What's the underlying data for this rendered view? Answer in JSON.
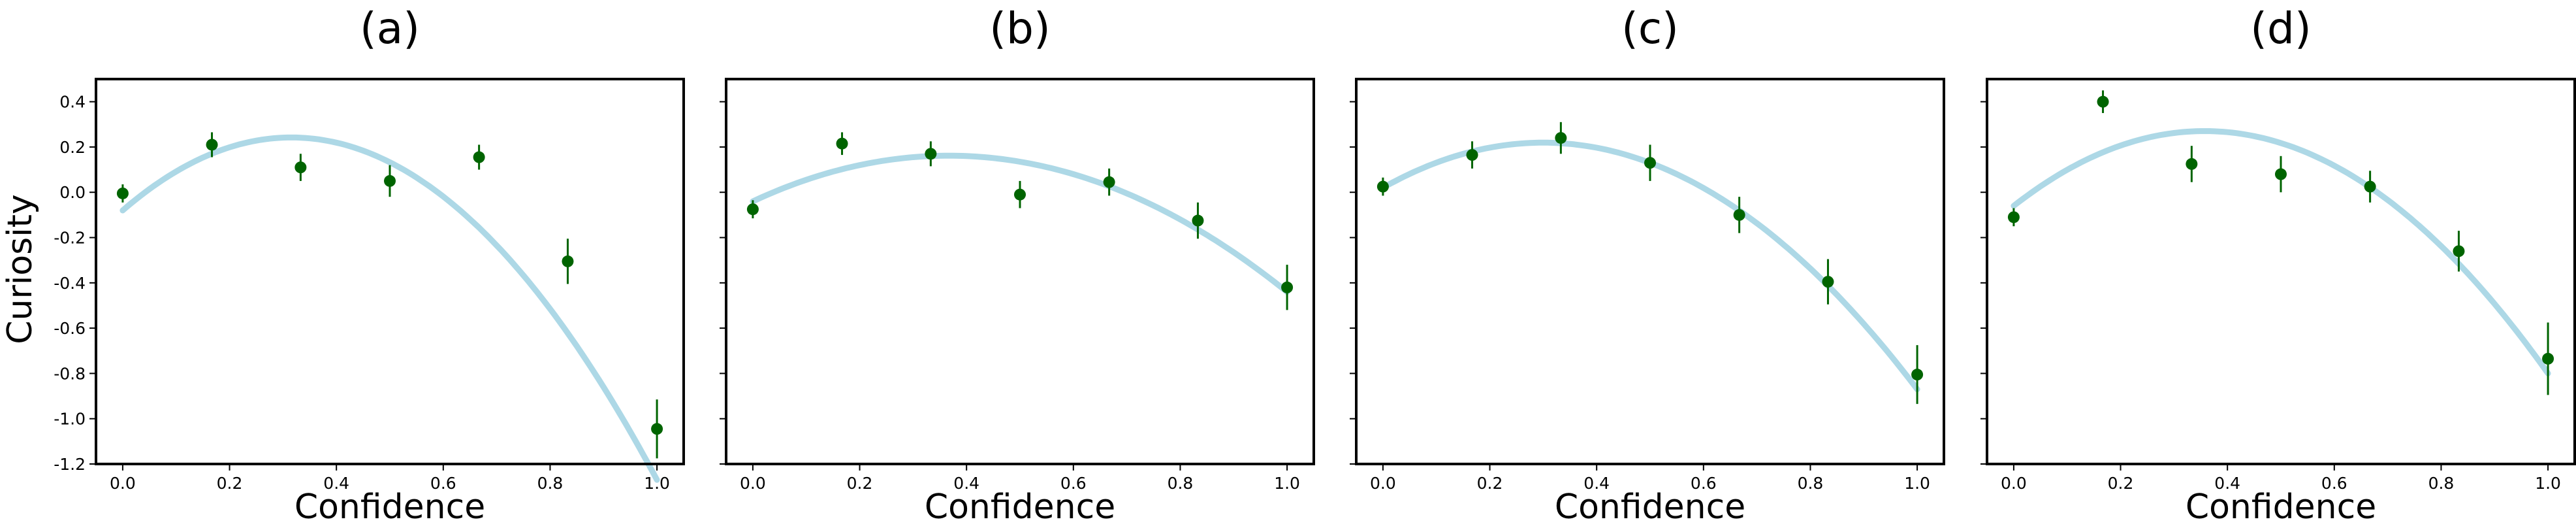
{
  "figure": {
    "ylabel": "Curiosity"
  },
  "colors": {
    "points": "#006400",
    "fit_curve": "#add8e6",
    "axes": "#000000"
  },
  "chart_data": [
    {
      "type": "scatter",
      "title": "(a)",
      "xlabel": "Confidence",
      "ylabel": "Curiosity",
      "xlim": [
        -0.05,
        1.05
      ],
      "ylim": [
        -1.2,
        0.5
      ],
      "xticks": [
        "0.0",
        "0.2",
        "0.4",
        "0.6",
        "0.8",
        "1.0"
      ],
      "yticks": [
        "-1.2",
        "-1.0",
        "-0.8",
        "-0.6",
        "-0.4",
        "-0.2",
        "0.0",
        "0.2",
        "0.4"
      ],
      "grid": false,
      "series": [
        {
          "kind": "points-with-errorbars",
          "x": [
            0.0,
            0.167,
            0.333,
            0.5,
            0.667,
            0.833,
            1.0
          ],
          "y": [
            -0.005,
            0.21,
            0.11,
            0.05,
            0.155,
            -0.305,
            -1.045
          ],
          "yerr": [
            0.04,
            0.055,
            0.06,
            0.07,
            0.055,
            0.1,
            0.13
          ]
        },
        {
          "kind": "quadratic-fit",
          "coefficients": [
            -3.23,
            2.04,
            -0.08
          ],
          "x_range": [
            0.0,
            1.0
          ]
        }
      ]
    },
    {
      "type": "scatter",
      "title": "(b)",
      "xlabel": "Confidence",
      "xlim": [
        -0.05,
        1.05
      ],
      "ylim": [
        -1.2,
        0.5
      ],
      "xticks": [
        "0.0",
        "0.2",
        "0.4",
        "0.6",
        "0.8",
        "1.0"
      ],
      "grid": false,
      "series": [
        {
          "kind": "points-with-errorbars",
          "x": [
            0.0,
            0.167,
            0.333,
            0.5,
            0.667,
            0.833,
            1.0
          ],
          "y": [
            -0.075,
            0.215,
            0.17,
            -0.01,
            0.045,
            -0.125,
            -0.42
          ],
          "yerr": [
            0.04,
            0.05,
            0.055,
            0.06,
            0.06,
            0.08,
            0.1
          ]
        },
        {
          "kind": "quadratic-fit",
          "coefficients": [
            -1.5,
            1.1,
            -0.04
          ],
          "x_range": [
            0.0,
            1.0
          ]
        }
      ]
    },
    {
      "type": "scatter",
      "title": "(c)",
      "xlabel": "Confidence",
      "xlim": [
        -0.05,
        1.05
      ],
      "ylim": [
        -1.2,
        0.5
      ],
      "xticks": [
        "0.0",
        "0.2",
        "0.4",
        "0.6",
        "0.8",
        "1.0"
      ],
      "grid": false,
      "series": [
        {
          "kind": "points-with-errorbars",
          "x": [
            0.0,
            0.167,
            0.333,
            0.5,
            0.667,
            0.833,
            1.0
          ],
          "y": [
            0.025,
            0.165,
            0.24,
            0.13,
            -0.1,
            -0.395,
            -0.805
          ],
          "yerr": [
            0.04,
            0.06,
            0.07,
            0.08,
            0.08,
            0.1,
            0.13
          ]
        },
        {
          "kind": "quadratic-fit",
          "coefficients": [
            -2.22,
            1.33,
            0.02
          ],
          "x_range": [
            0.0,
            1.0
          ]
        }
      ]
    },
    {
      "type": "scatter",
      "title": "(d)",
      "xlabel": "Confidence",
      "xlim": [
        -0.05,
        1.05
      ],
      "ylim": [
        -1.2,
        0.5
      ],
      "xticks": [
        "0.0",
        "0.2",
        "0.4",
        "0.6",
        "0.8",
        "1.0"
      ],
      "grid": false,
      "series": [
        {
          "kind": "points-with-errorbars",
          "x": [
            0.0,
            0.167,
            0.333,
            0.5,
            0.667,
            0.833,
            1.0
          ],
          "y": [
            -0.11,
            0.4,
            0.125,
            0.08,
            0.025,
            -0.26,
            -0.735
          ],
          "yerr": [
            0.04,
            0.05,
            0.08,
            0.08,
            0.07,
            0.09,
            0.16
          ]
        },
        {
          "kind": "quadratic-fit",
          "coefficients": [
            -2.59,
            1.85,
            -0.06
          ],
          "x_range": [
            0.0,
            1.0
          ]
        }
      ]
    }
  ]
}
